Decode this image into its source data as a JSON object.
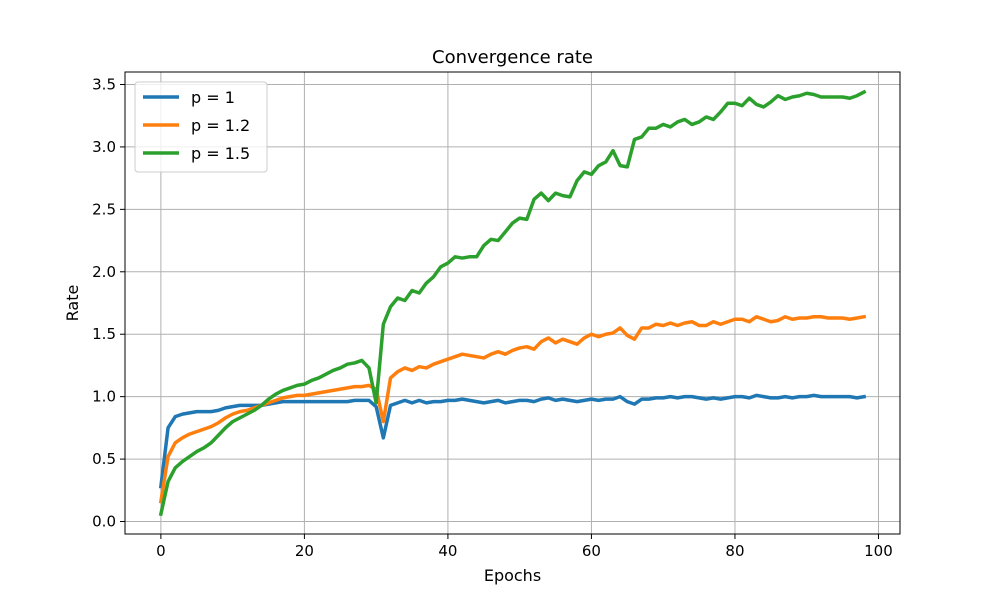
{
  "chart_data": {
    "type": "line",
    "title": "Convergence rate",
    "xlabel": "Epochs",
    "ylabel": "Rate",
    "xlim": [
      -5,
      103
    ],
    "ylim": [
      -0.1,
      3.6
    ],
    "xticks": [
      0,
      20,
      40,
      60,
      80,
      100
    ],
    "xtick_labels": [
      "0",
      "20",
      "40",
      "60",
      "80",
      "100"
    ],
    "yticks": [
      0.0,
      0.5,
      1.0,
      1.5,
      2.0,
      2.5,
      3.0,
      3.5
    ],
    "ytick_labels": [
      "0.0",
      "0.5",
      "1.0",
      "1.5",
      "2.0",
      "2.5",
      "3.0",
      "3.5"
    ],
    "grid": true,
    "legend_position": "top-left",
    "x": [
      0,
      1,
      2,
      3,
      4,
      5,
      6,
      7,
      8,
      9,
      10,
      11,
      12,
      13,
      14,
      15,
      16,
      17,
      18,
      19,
      20,
      21,
      22,
      23,
      24,
      25,
      26,
      27,
      28,
      29,
      30,
      31,
      32,
      33,
      34,
      35,
      36,
      37,
      38,
      39,
      40,
      41,
      42,
      43,
      44,
      45,
      46,
      47,
      48,
      49,
      50,
      51,
      52,
      53,
      54,
      55,
      56,
      57,
      58,
      59,
      60,
      61,
      62,
      63,
      64,
      65,
      66,
      67,
      68,
      69,
      70,
      71,
      72,
      73,
      74,
      75,
      76,
      77,
      78,
      79,
      80,
      81,
      82,
      83,
      84,
      85,
      86,
      87,
      88,
      89,
      90,
      91,
      92,
      93,
      94,
      95,
      96,
      97,
      98
    ],
    "series": [
      {
        "name": "p = 1",
        "color": "#1f77b4",
        "values": [
          0.28,
          0.75,
          0.84,
          0.86,
          0.87,
          0.88,
          0.88,
          0.88,
          0.89,
          0.91,
          0.92,
          0.93,
          0.93,
          0.93,
          0.93,
          0.94,
          0.95,
          0.96,
          0.96,
          0.96,
          0.96,
          0.96,
          0.96,
          0.96,
          0.96,
          0.96,
          0.96,
          0.97,
          0.97,
          0.97,
          0.92,
          0.67,
          0.93,
          0.95,
          0.97,
          0.95,
          0.97,
          0.95,
          0.96,
          0.96,
          0.97,
          0.97,
          0.98,
          0.97,
          0.96,
          0.95,
          0.96,
          0.97,
          0.95,
          0.96,
          0.97,
          0.97,
          0.96,
          0.98,
          0.99,
          0.97,
          0.98,
          0.97,
          0.96,
          0.97,
          0.98,
          0.97,
          0.98,
          0.98,
          1.0,
          0.96,
          0.94,
          0.98,
          0.98,
          0.99,
          0.99,
          1.0,
          0.99,
          1.0,
          1.0,
          0.99,
          0.98,
          0.99,
          0.98,
          0.99,
          1.0,
          1.0,
          0.99,
          1.01,
          1.0,
          0.99,
          0.99,
          1.0,
          0.99,
          1.0,
          1.0,
          1.01,
          1.0,
          1.0,
          1.0,
          1.0,
          1.0,
          0.99,
          1.0
        ]
      },
      {
        "name": "p = 1.2",
        "color": "#ff7f0e",
        "values": [
          0.16,
          0.52,
          0.63,
          0.67,
          0.7,
          0.72,
          0.74,
          0.76,
          0.79,
          0.83,
          0.86,
          0.88,
          0.89,
          0.91,
          0.93,
          0.95,
          0.97,
          0.99,
          1.0,
          1.01,
          1.01,
          1.02,
          1.03,
          1.04,
          1.05,
          1.06,
          1.07,
          1.08,
          1.08,
          1.09,
          1.06,
          0.8,
          1.15,
          1.2,
          1.23,
          1.21,
          1.24,
          1.23,
          1.26,
          1.28,
          1.3,
          1.32,
          1.34,
          1.33,
          1.32,
          1.31,
          1.34,
          1.36,
          1.34,
          1.37,
          1.39,
          1.4,
          1.38,
          1.44,
          1.47,
          1.43,
          1.46,
          1.44,
          1.42,
          1.47,
          1.5,
          1.48,
          1.5,
          1.51,
          1.55,
          1.49,
          1.46,
          1.55,
          1.55,
          1.58,
          1.57,
          1.59,
          1.57,
          1.59,
          1.6,
          1.57,
          1.57,
          1.6,
          1.58,
          1.6,
          1.62,
          1.62,
          1.6,
          1.64,
          1.62,
          1.6,
          1.61,
          1.64,
          1.62,
          1.63,
          1.63,
          1.64,
          1.64,
          1.63,
          1.63,
          1.63,
          1.62,
          1.63,
          1.64
        ]
      },
      {
        "name": "p = 1.5",
        "color": "#2ca02c",
        "values": [
          0.06,
          0.32,
          0.43,
          0.48,
          0.52,
          0.56,
          0.59,
          0.63,
          0.69,
          0.75,
          0.8,
          0.83,
          0.86,
          0.89,
          0.93,
          0.98,
          1.02,
          1.05,
          1.07,
          1.09,
          1.1,
          1.13,
          1.15,
          1.18,
          1.21,
          1.23,
          1.26,
          1.27,
          1.29,
          1.23,
          0.95,
          1.58,
          1.72,
          1.79,
          1.77,
          1.85,
          1.83,
          1.91,
          1.96,
          2.04,
          2.07,
          2.12,
          2.11,
          2.12,
          2.12,
          2.21,
          2.26,
          2.25,
          2.32,
          2.39,
          2.43,
          2.42,
          2.58,
          2.63,
          2.57,
          2.63,
          2.61,
          2.6,
          2.73,
          2.8,
          2.78,
          2.85,
          2.88,
          2.97,
          2.85,
          2.84,
          3.06,
          3.08,
          3.15,
          3.15,
          3.18,
          3.16,
          3.2,
          3.22,
          3.18,
          3.2,
          3.24,
          3.22,
          3.28,
          3.35,
          3.35,
          3.33,
          3.39,
          3.34,
          3.32,
          3.36,
          3.41,
          3.38,
          3.4,
          3.41,
          3.43,
          3.42,
          3.4,
          3.4,
          3.4,
          3.4,
          3.39,
          3.41,
          3.44
        ]
      }
    ]
  }
}
